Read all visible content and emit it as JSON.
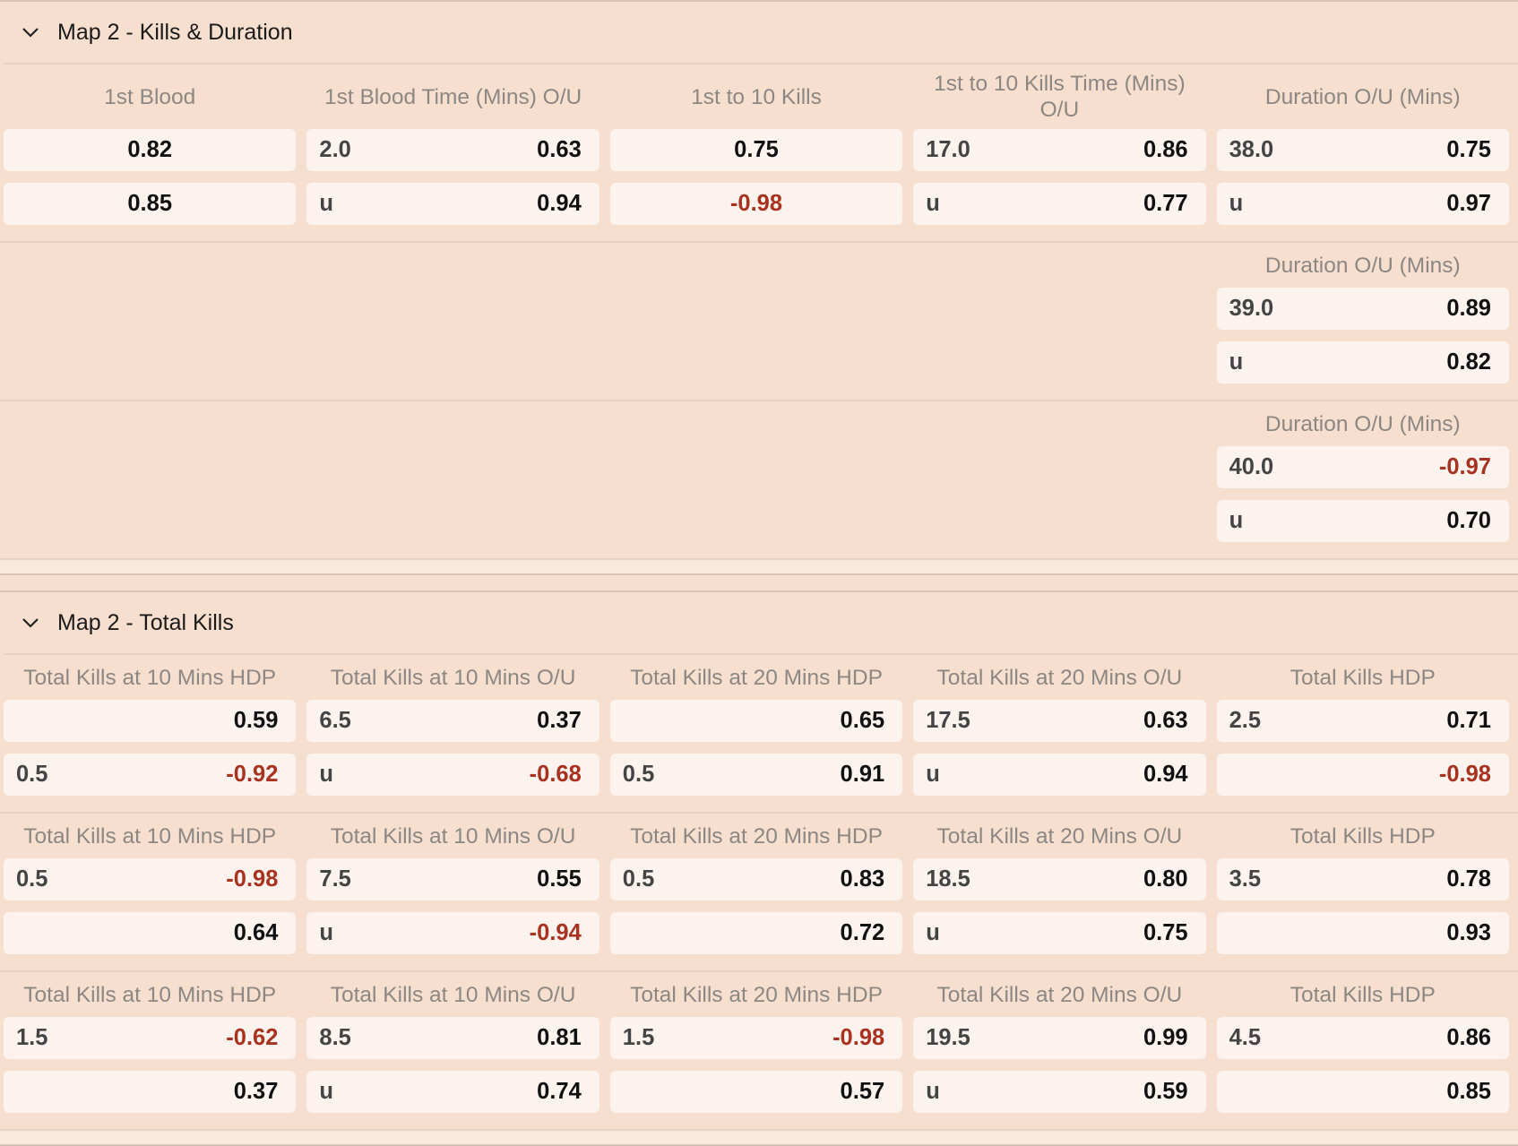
{
  "colors": {
    "background": "#f7dfcf",
    "cell": "#fcf3ee",
    "negative": "#a8321f",
    "header_text": "#8c8783"
  },
  "sections": [
    {
      "title": "Map 2 - Kills & Duration",
      "icon": "chevron-down-icon",
      "groups": [
        {
          "columns": [
            {
              "header": "1st Blood",
              "rows": [
                {
                  "line": "",
                  "odds": "0.82"
                },
                {
                  "line": "",
                  "odds": "0.85"
                }
              ]
            },
            {
              "header": "1st Blood Time (Mins) O/U",
              "rows": [
                {
                  "line": "2.0",
                  "odds": "0.63"
                },
                {
                  "line": "u",
                  "odds": "0.94"
                }
              ]
            },
            {
              "header": "1st to 10 Kills",
              "rows": [
                {
                  "line": "",
                  "odds": "0.75"
                },
                {
                  "line": "",
                  "odds": "-0.98"
                }
              ]
            },
            {
              "header": "1st to 10 Kills Time (Mins) O/U",
              "rows": [
                {
                  "line": "17.0",
                  "odds": "0.86"
                },
                {
                  "line": "u",
                  "odds": "0.77"
                }
              ]
            },
            {
              "header": "Duration O/U (Mins)",
              "rows": [
                {
                  "line": "38.0",
                  "odds": "0.75"
                },
                {
                  "line": "u",
                  "odds": "0.97"
                }
              ]
            }
          ]
        },
        {
          "columns": [
            null,
            null,
            null,
            null,
            {
              "header": "Duration O/U (Mins)",
              "rows": [
                {
                  "line": "39.0",
                  "odds": "0.89"
                },
                {
                  "line": "u",
                  "odds": "0.82"
                }
              ]
            }
          ]
        },
        {
          "columns": [
            null,
            null,
            null,
            null,
            {
              "header": "Duration O/U (Mins)",
              "rows": [
                {
                  "line": "40.0",
                  "odds": "-0.97"
                },
                {
                  "line": "u",
                  "odds": "0.70"
                }
              ]
            }
          ]
        }
      ]
    },
    {
      "title": "Map 2 - Total Kills",
      "icon": "chevron-down-icon",
      "groups": [
        {
          "columns": [
            {
              "header": "Total Kills at 10 Mins HDP",
              "rows": [
                {
                  "line": "",
                  "odds": "0.59"
                },
                {
                  "line": "0.5",
                  "odds": "-0.92"
                }
              ]
            },
            {
              "header": "Total Kills at 10 Mins O/U",
              "rows": [
                {
                  "line": "6.5",
                  "odds": "0.37"
                },
                {
                  "line": "u",
                  "odds": "-0.68"
                }
              ]
            },
            {
              "header": "Total Kills at 20 Mins HDP",
              "rows": [
                {
                  "line": "",
                  "odds": "0.65"
                },
                {
                  "line": "0.5",
                  "odds": "0.91"
                }
              ]
            },
            {
              "header": "Total Kills at 20 Mins O/U",
              "rows": [
                {
                  "line": "17.5",
                  "odds": "0.63"
                },
                {
                  "line": "u",
                  "odds": "0.94"
                }
              ]
            },
            {
              "header": "Total Kills HDP",
              "rows": [
                {
                  "line": "2.5",
                  "odds": "0.71"
                },
                {
                  "line": "",
                  "odds": "-0.98"
                }
              ]
            }
          ]
        },
        {
          "columns": [
            {
              "header": "Total Kills at 10 Mins HDP",
              "rows": [
                {
                  "line": "0.5",
                  "odds": "-0.98"
                },
                {
                  "line": "",
                  "odds": "0.64"
                }
              ]
            },
            {
              "header": "Total Kills at 10 Mins O/U",
              "rows": [
                {
                  "line": "7.5",
                  "odds": "0.55"
                },
                {
                  "line": "u",
                  "odds": "-0.94"
                }
              ]
            },
            {
              "header": "Total Kills at 20 Mins HDP",
              "rows": [
                {
                  "line": "0.5",
                  "odds": "0.83"
                },
                {
                  "line": "",
                  "odds": "0.72"
                }
              ]
            },
            {
              "header": "Total Kills at 20 Mins O/U",
              "rows": [
                {
                  "line": "18.5",
                  "odds": "0.80"
                },
                {
                  "line": "u",
                  "odds": "0.75"
                }
              ]
            },
            {
              "header": "Total Kills HDP",
              "rows": [
                {
                  "line": "3.5",
                  "odds": "0.78"
                },
                {
                  "line": "",
                  "odds": "0.93"
                }
              ]
            }
          ]
        },
        {
          "columns": [
            {
              "header": "Total Kills at 10 Mins HDP",
              "rows": [
                {
                  "line": "1.5",
                  "odds": "-0.62"
                },
                {
                  "line": "",
                  "odds": "0.37"
                }
              ]
            },
            {
              "header": "Total Kills at 10 Mins O/U",
              "rows": [
                {
                  "line": "8.5",
                  "odds": "0.81"
                },
                {
                  "line": "u",
                  "odds": "0.74"
                }
              ]
            },
            {
              "header": "Total Kills at 20 Mins HDP",
              "rows": [
                {
                  "line": "1.5",
                  "odds": "-0.98"
                },
                {
                  "line": "",
                  "odds": "0.57"
                }
              ]
            },
            {
              "header": "Total Kills at 20 Mins O/U",
              "rows": [
                {
                  "line": "19.5",
                  "odds": "0.99"
                },
                {
                  "line": "u",
                  "odds": "0.59"
                }
              ]
            },
            {
              "header": "Total Kills HDP",
              "rows": [
                {
                  "line": "4.5",
                  "odds": "0.86"
                },
                {
                  "line": "",
                  "odds": "0.85"
                }
              ]
            }
          ]
        }
      ]
    }
  ]
}
